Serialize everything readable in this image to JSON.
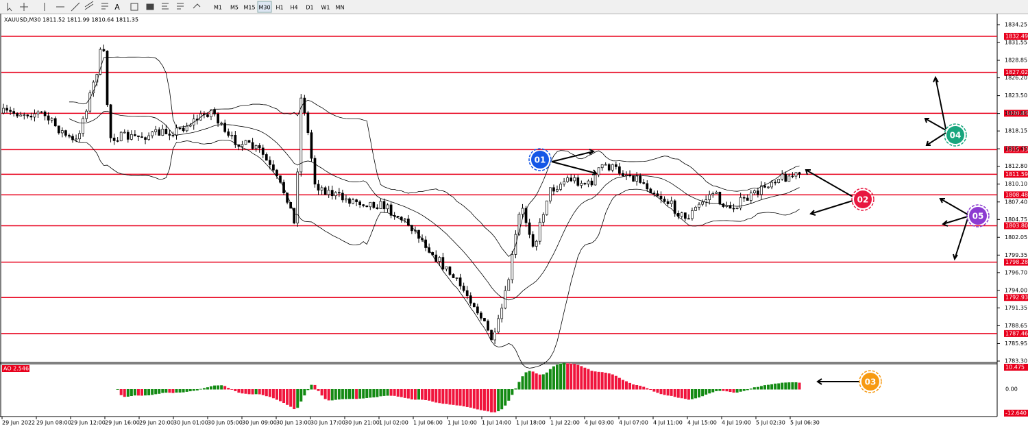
{
  "toolbar": {
    "tools": [
      "A"
    ],
    "timeframes": [
      "M1",
      "M5",
      "M15",
      "M30",
      "H1",
      "H4",
      "D1",
      "W1",
      "MN"
    ]
  },
  "chart": {
    "header": "XAUUSD,M30  1811.52 1811.99 1810.64 1811.35",
    "price_axis": [
      "1834.25",
      "1831.55",
      "1828.85",
      "1826.20",
      "1823.50",
      "1820.80",
      "1818.15",
      "1815.45",
      "1812.80",
      "1810.10",
      "1807.40",
      "1804.75",
      "1802.05",
      "1799.35",
      "1796.70",
      "1794.00",
      "1791.35",
      "1788.65",
      "1785.95",
      "1783.30"
    ],
    "levels": [
      "1832.49",
      "1827.02",
      "1820.83",
      "1815.33",
      "1811.59",
      "1808.48",
      "1803.80",
      "1798.28",
      "1792.93",
      "1787.46"
    ],
    "time_axis": [
      "29 Jun 2022",
      "29 Jun 08:00",
      "29 Jun 12:00",
      "29 Jun 16:00",
      "29 Jun 20:00",
      "30 Jun 01:00",
      "30 Jun 05:00",
      "30 Jun 09:00",
      "30 Jun 13:00",
      "30 Jun 17:00",
      "30 Jun 21:00",
      "1 Jul 02:00",
      "1 Jul 06:00",
      "1 Jul 10:00",
      "1 Jul 14:00",
      "1 Jul 18:00",
      "1 Jul 22:00",
      "4 Jul 03:00",
      "4 Jul 07:00",
      "4 Jul 11:00",
      "4 Jul 15:00",
      "4 Jul 19:00",
      "5 Jul 02:30",
      "5 Jul 06:30"
    ],
    "indicator": {
      "label": "AO 2.546",
      "axis": [
        "10.475",
        "0.00",
        "-12.640"
      ]
    }
  },
  "callouts": [
    "01",
    "02",
    "03",
    "04",
    "05"
  ]
}
